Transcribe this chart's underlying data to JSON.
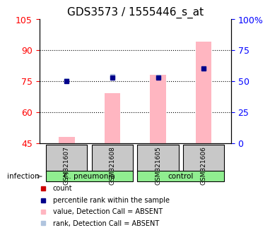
{
  "title": "GDS3573 / 1555446_s_at",
  "samples": [
    "GSM321607",
    "GSM321608",
    "GSM321605",
    "GSM321606"
  ],
  "groups": [
    "C. pneumonia",
    "C. pneumonia",
    "control",
    "control"
  ],
  "group_colors": [
    "#90EE90",
    "#90EE90",
    "#90EE90",
    "#90EE90"
  ],
  "group_labels": [
    "C. pneumonia",
    "control"
  ],
  "group_label_colors": [
    "#90EE90",
    "#90EE90"
  ],
  "ylim_left": [
    45,
    105
  ],
  "ylim_right": [
    0,
    100
  ],
  "yticks_left": [
    45,
    60,
    75,
    90,
    105
  ],
  "yticks_right": [
    0,
    25,
    50,
    75,
    100
  ],
  "ytick_labels_left": [
    "45",
    "60",
    "75",
    "90",
    "105"
  ],
  "ytick_labels_right": [
    "0",
    "25",
    "50",
    "75",
    "100%"
  ],
  "bar_values": [
    48,
    69,
    78,
    94
  ],
  "bar_color": "#FFB6C1",
  "percentile_values": [
    50,
    53,
    53,
    60
  ],
  "percentile_color": "#00008B",
  "rank_absent_values": [
    50.5,
    54,
    53.5,
    60.5
  ],
  "rank_absent_color": "#B0C4DE",
  "infection_label": "infection",
  "legend_items": [
    {
      "label": "count",
      "color": "#CC0000",
      "marker": "s"
    },
    {
      "label": "percentile rank within the sample",
      "color": "#00008B",
      "marker": "s"
    },
    {
      "label": "value, Detection Call = ABSENT",
      "color": "#FFB6C1",
      "marker": "s"
    },
    {
      "label": "rank, Detection Call = ABSENT",
      "color": "#B0C4DE",
      "marker": "s"
    }
  ],
  "title_fontsize": 11,
  "tick_fontsize": 9,
  "label_fontsize": 9,
  "grid_dotted": true
}
